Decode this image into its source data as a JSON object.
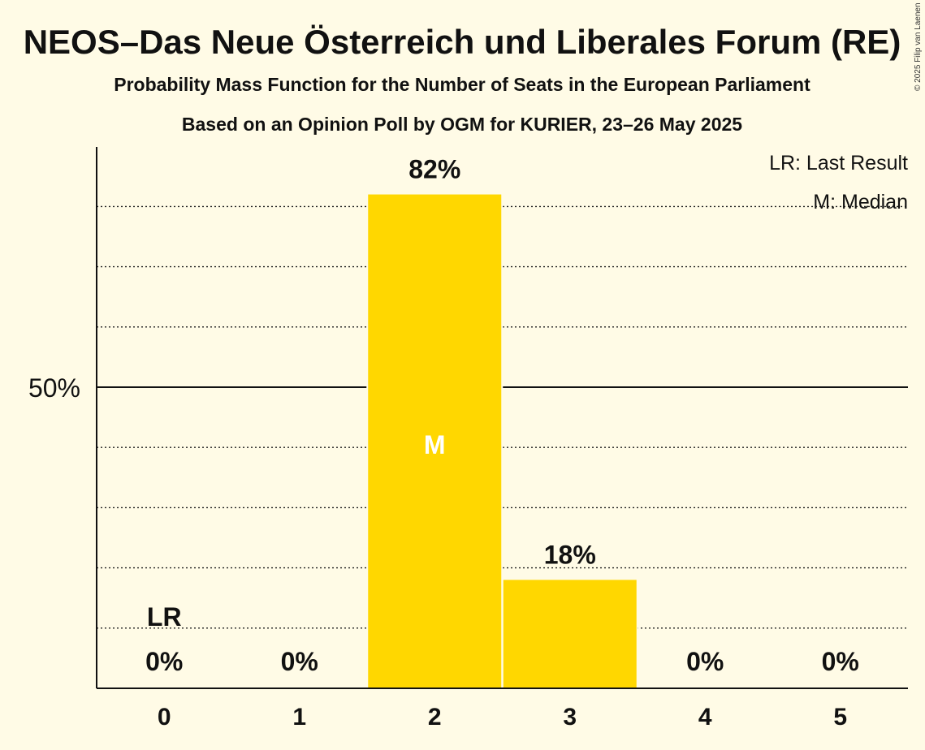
{
  "chart_data": {
    "type": "bar",
    "title": "NEOS–Das Neue Österreich und Liberales Forum (RE)",
    "subtitle": "Probability Mass Function for the Number of Seats in the European Parliament",
    "subtitle2": "Based on an Opinion Poll by OGM for KURIER, 23–26 May 2025",
    "copyright": "© 2025 Filip van Laenen",
    "categories": [
      "0",
      "1",
      "2",
      "3",
      "4",
      "5"
    ],
    "values": [
      0,
      0,
      82,
      18,
      0,
      0
    ],
    "value_labels": [
      "0%",
      "0%",
      "82%",
      "18%",
      "0%",
      "0%"
    ],
    "ylim": [
      0,
      90
    ],
    "y_major_tick": {
      "value": 50,
      "label": "50%"
    },
    "y_minor_ticks": [
      10,
      20,
      30,
      40,
      60,
      70,
      80
    ],
    "last_result_category": "0",
    "last_result_marker": "LR",
    "median_category": "2",
    "median_marker": "M",
    "legend": [
      "LR: Last Result",
      "M: Median"
    ],
    "legend_position": "top-right",
    "bar_color": "#ffd700",
    "grid": "dotted"
  }
}
